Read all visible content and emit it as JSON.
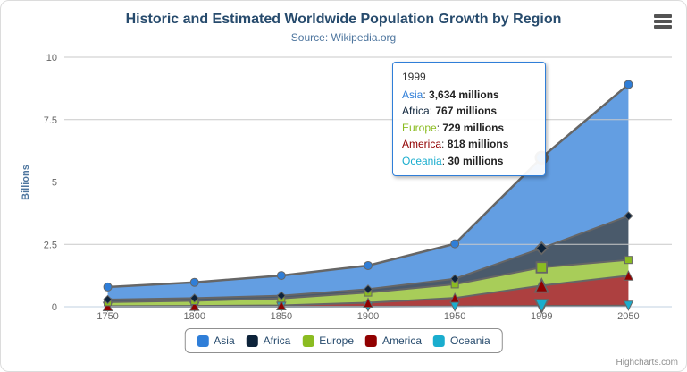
{
  "colors": {
    "title": "#274b6d",
    "subtitle": "#4d759e",
    "axis_text": "#666666",
    "axis_title": "#4d759e",
    "legend_text": "#274b6d",
    "legend_border": "#909090",
    "grid": "#c9c9c9",
    "axis_line": "#c0d0e0",
    "tooltip_border": "#2f7ed8",
    "tooltip_text": "#333333",
    "credits": "#909090",
    "menu_icon": "#545454",
    "series_line": "#666666"
  },
  "menu": {
    "icon": "hamburger-icon"
  },
  "tooltip": {
    "header": "1999",
    "rows": [
      {
        "name": "Asia",
        "value": "3,634 millions",
        "color": "#2f7ed8"
      },
      {
        "name": "Africa",
        "value": "767 millions",
        "color": "#0d233a"
      },
      {
        "name": "Europe",
        "value": "729 millions",
        "color": "#8bbc21"
      },
      {
        "name": "America",
        "value": "818 millions",
        "color": "#910000"
      },
      {
        "name": "Oceania",
        "value": "30 millions",
        "color": "#1aadce"
      }
    ]
  },
  "legend": {
    "items": [
      {
        "label": "Asia",
        "color": "#2f7ed8"
      },
      {
        "label": "Africa",
        "color": "#0d233a"
      },
      {
        "label": "Europe",
        "color": "#8bbc21"
      },
      {
        "label": "America",
        "color": "#910000"
      },
      {
        "label": "Oceania",
        "color": "#1aadce"
      }
    ]
  },
  "credits": {
    "label": "Highcharts.com"
  },
  "chart_data": {
    "type": "area",
    "stacked": true,
    "title": "Historic and Estimated Worldwide Population Growth by Region",
    "subtitle": "Source: Wikipedia.org",
    "xlabel": "",
    "ylabel": "Billions",
    "ylim": [
      0,
      10
    ],
    "yticks": [
      0,
      2.5,
      5,
      7.5,
      10
    ],
    "categories": [
      "1750",
      "1800",
      "1850",
      "1900",
      "1950",
      "1999",
      "2050"
    ],
    "unit": "millions",
    "grid": true,
    "legend_position": "bottom",
    "hover_index": 5,
    "fill_opacity": 0.75,
    "series": [
      {
        "name": "Asia",
        "color": "#2f7ed8",
        "marker": "circle",
        "values": [
          502,
          635,
          809,
          947,
          1402,
          3634,
          5268
        ]
      },
      {
        "name": "Africa",
        "color": "#0d233a",
        "marker": "diamond",
        "values": [
          106,
          107,
          111,
          133,
          221,
          767,
          1766
        ]
      },
      {
        "name": "Europe",
        "color": "#8bbc21",
        "marker": "square",
        "values": [
          163,
          203,
          276,
          408,
          547,
          729,
          628
        ]
      },
      {
        "name": "America",
        "color": "#910000",
        "marker": "triangle",
        "values": [
          18,
          31,
          54,
          156,
          339,
          818,
          1201
        ]
      },
      {
        "name": "Oceania",
        "color": "#1aadce",
        "marker": "triangle-down",
        "values": [
          2,
          2,
          2,
          6,
          13,
          30,
          46
        ]
      }
    ]
  }
}
